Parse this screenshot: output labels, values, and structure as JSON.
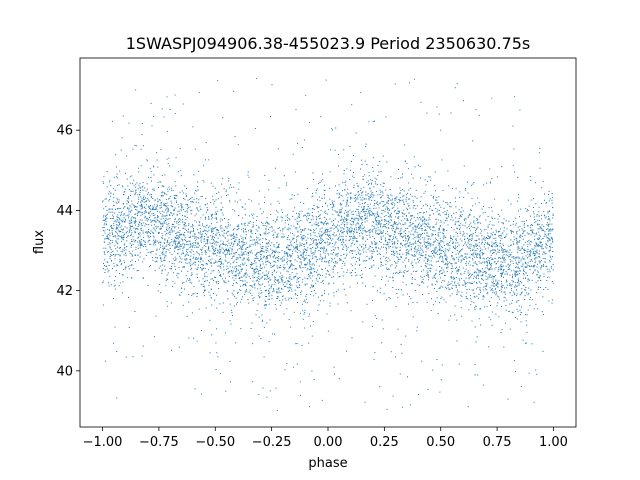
{
  "chart_data": {
    "type": "scatter",
    "title": "1SWASPJ094906.38-455023.9 Period 2350630.75s",
    "xlabel": "phase",
    "ylabel": "flux",
    "xlim": [
      -1.1,
      1.1
    ],
    "ylim": [
      38.6,
      47.8
    ],
    "xticks": [
      -1.0,
      -0.75,
      -0.5,
      -0.25,
      0.0,
      0.25,
      0.5,
      0.75,
      1.0
    ],
    "xtick_labels": [
      "−1.00",
      "−0.75",
      "−0.50",
      "−0.25",
      "0.00",
      "0.25",
      "0.50",
      "0.75",
      "1.00"
    ],
    "yticks": [
      40,
      42,
      44,
      46
    ],
    "ytick_labels": [
      "40",
      "42",
      "44",
      "46"
    ],
    "grid": false,
    "legend": "none",
    "marker_color": "#1f77b4",
    "series": [
      {
        "profile": {
          "phase": [
            -1.0,
            -0.9,
            -0.8,
            -0.7,
            -0.6,
            -0.5,
            -0.4,
            -0.3,
            -0.2,
            -0.1,
            0.0,
            0.1,
            0.2,
            0.3,
            0.4,
            0.5,
            0.6,
            0.7,
            0.8,
            0.9,
            1.0
          ],
          "median_flux": [
            43.3,
            43.6,
            43.8,
            43.5,
            43.3,
            43.1,
            42.9,
            42.8,
            42.6,
            42.9,
            43.3,
            43.6,
            43.8,
            43.5,
            43.3,
            43.1,
            42.9,
            42.8,
            42.6,
            42.9,
            43.3
          ]
        },
        "core_spread": 0.65,
        "outlier_range": [
          39.0,
          47.4
        ]
      }
    ]
  }
}
